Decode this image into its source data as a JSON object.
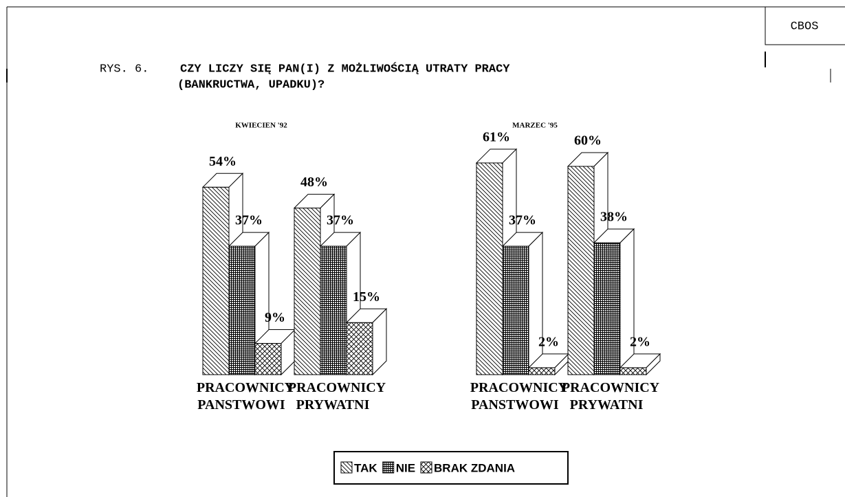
{
  "header": {
    "label": "CBOS",
    "figure": "RYS. 6.",
    "title_lines": [
      "CZY LICZY SIĘ PAN(I) Z MOŻLIWOŚCIĄ UTRATY PRACY",
      "(BANKRUCTWA, UPADKU)?"
    ]
  },
  "chart_data": [
    {
      "type": "bar",
      "title": "KWIECIEN '92",
      "categories": [
        "PRACOWNICY PANSTWOWI",
        "PRACOWNICY PRYWATNI"
      ],
      "series": [
        {
          "name": "TAK",
          "values": [
            54,
            48
          ],
          "value_labels": [
            "54%",
            "48%"
          ]
        },
        {
          "name": "NIE",
          "values": [
            37,
            37
          ],
          "value_labels": [
            "37%",
            "37%"
          ]
        },
        {
          "name": "BRAK ZDANIA",
          "values": [
            9,
            15
          ],
          "value_labels": [
            "9%",
            "15%"
          ]
        }
      ]
    },
    {
      "type": "bar",
      "title": "MARZEC '95",
      "categories": [
        "PRACOWNICY PANSTWOWI",
        "PRACOWNICY PRYWATNI"
      ],
      "series": [
        {
          "name": "TAK",
          "values": [
            61,
            60
          ],
          "value_labels": [
            "61%",
            "60%"
          ]
        },
        {
          "name": "NIE",
          "values": [
            37,
            38
          ],
          "value_labels": [
            "37%",
            "38%"
          ]
        },
        {
          "name": "BRAK ZDANIA",
          "values": [
            2,
            2
          ],
          "value_labels": [
            "2%",
            "2%"
          ]
        }
      ]
    }
  ]
}
